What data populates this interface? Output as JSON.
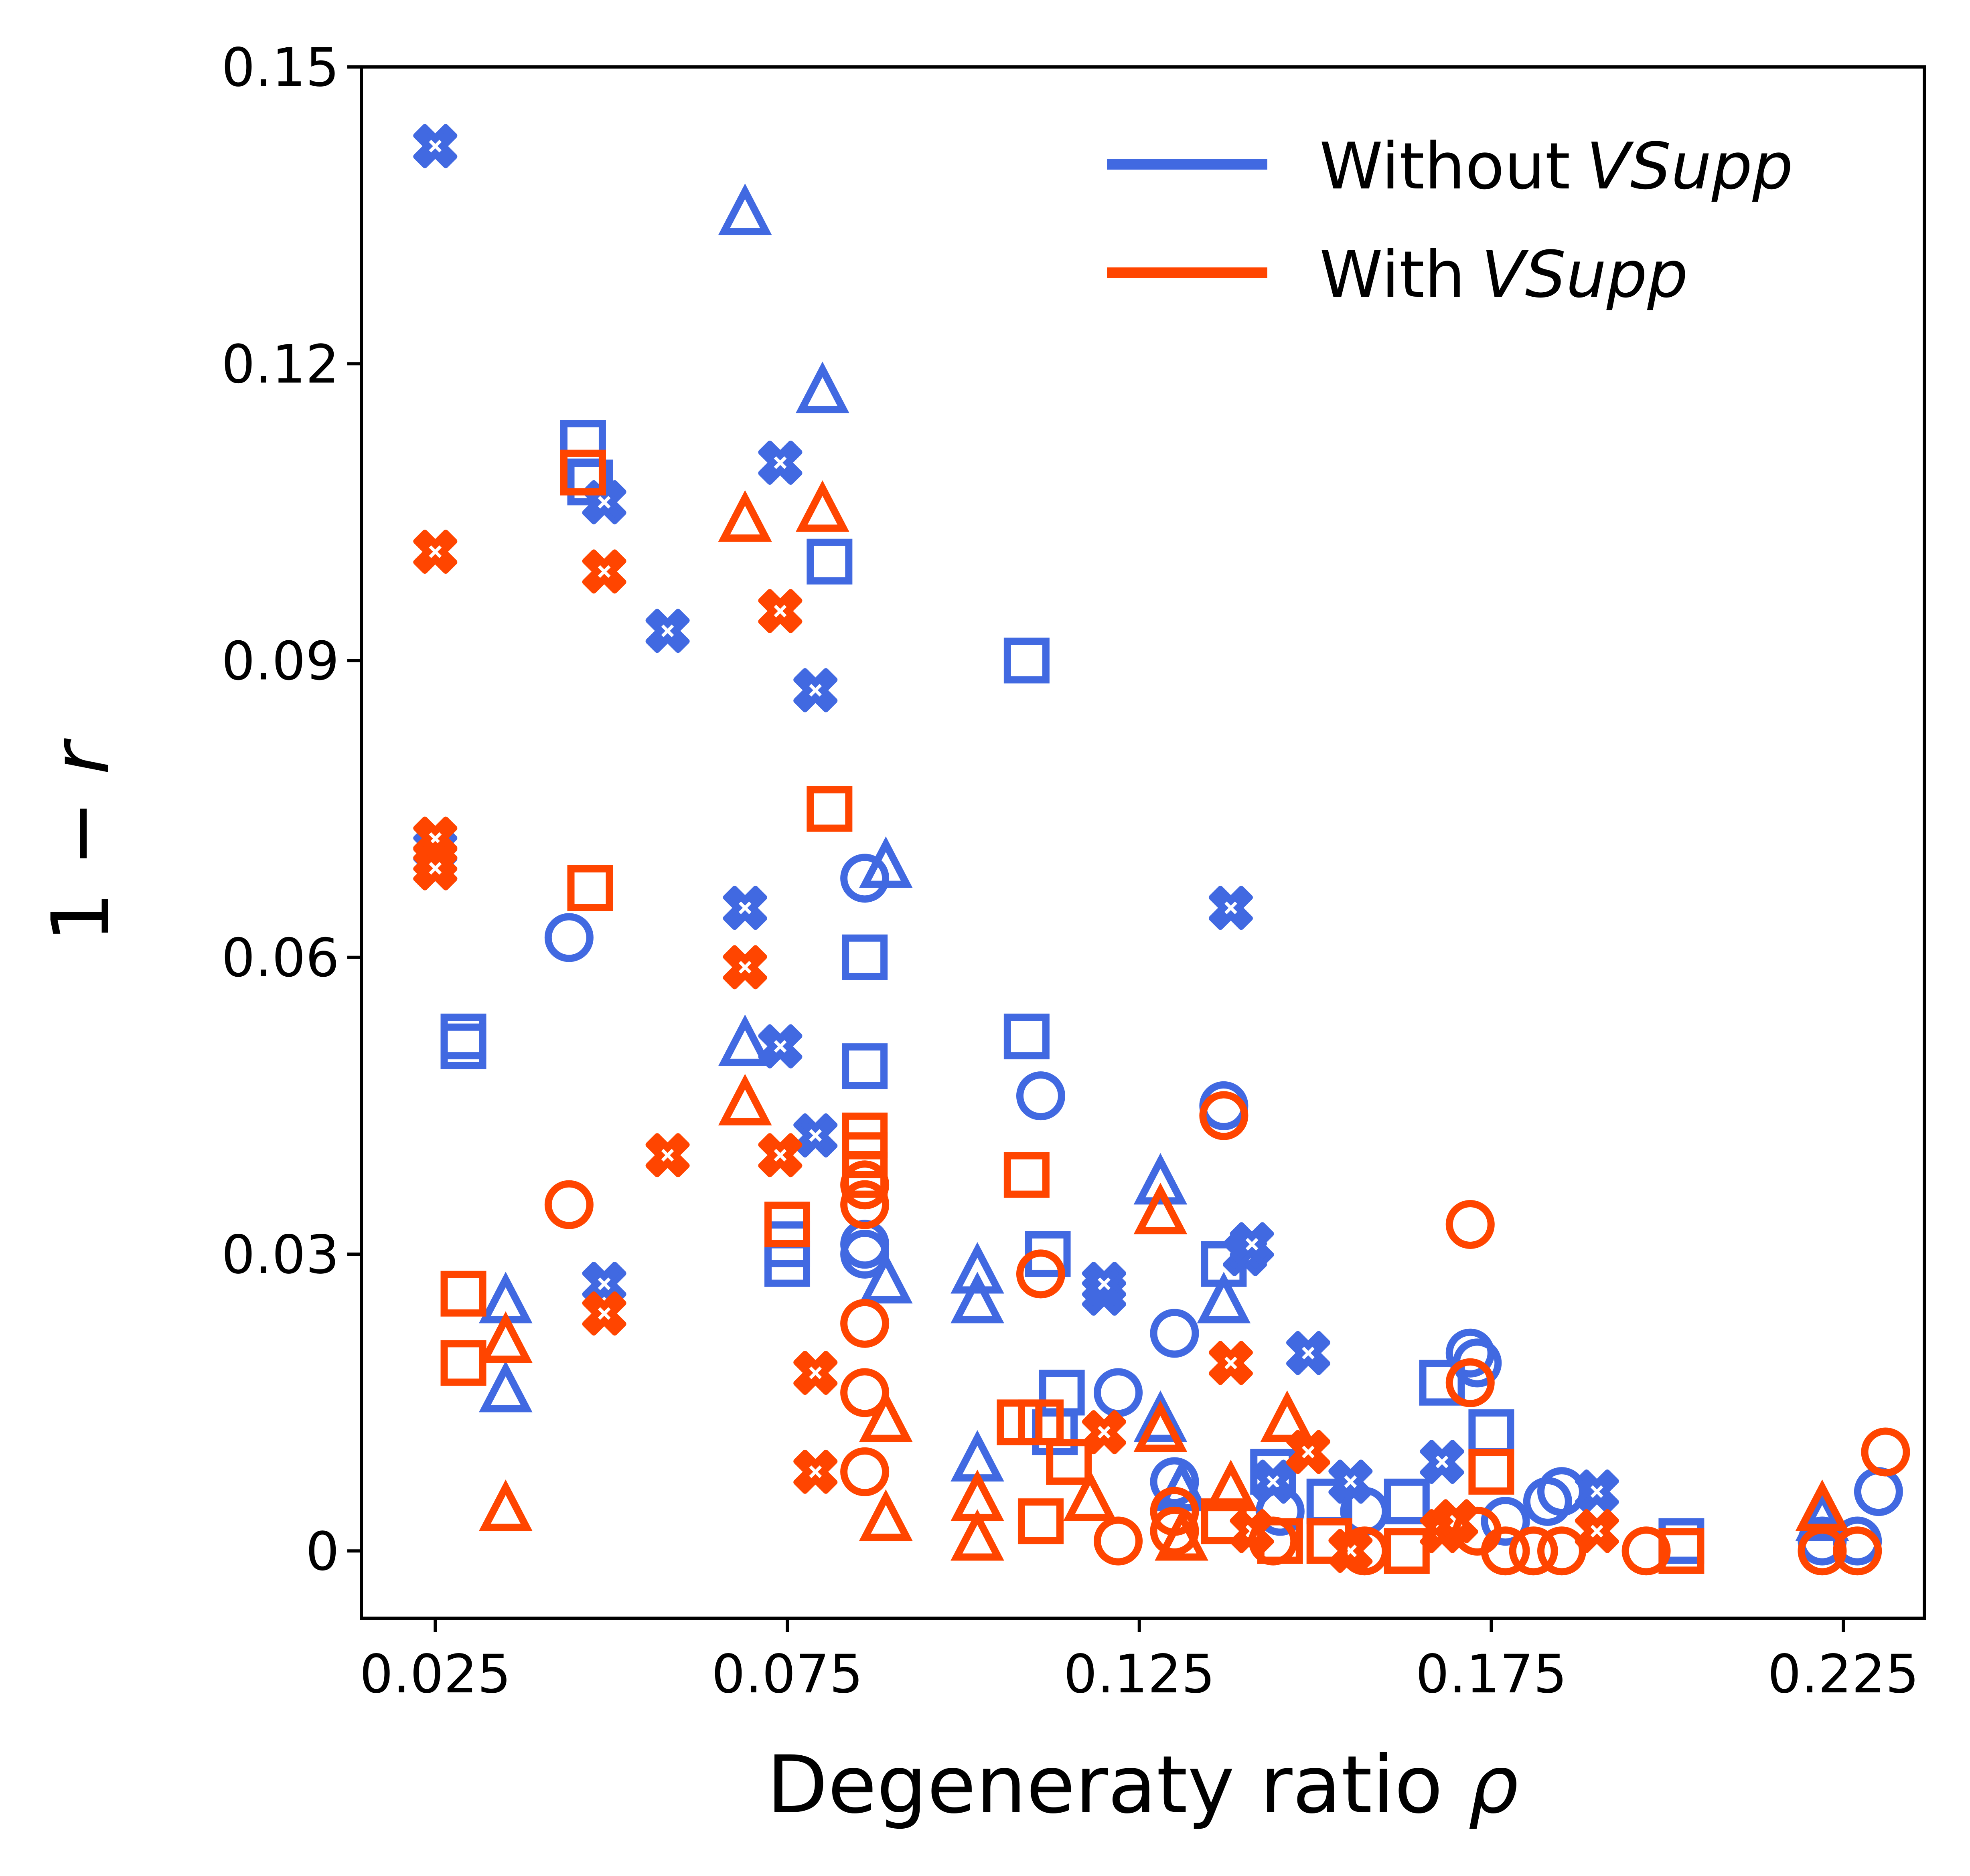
{
  "chart_data": {
    "type": "scatter",
    "xlabel_prefix": "Degeneraty ratio ",
    "xlabel_symbol": "ρ",
    "ylabel_prefix": "1 − ",
    "ylabel_symbol": "r",
    "xlim": [
      0.0145,
      0.2365
    ],
    "ylim": [
      -0.0068,
      0.15
    ],
    "xticks": [
      0.025,
      0.075,
      0.125,
      0.175,
      0.225
    ],
    "xtick_labels": [
      "0.025",
      "0.075",
      "0.125",
      "0.175",
      "0.225"
    ],
    "yticks": [
      0,
      0.03,
      0.06,
      0.09,
      0.12,
      0.15
    ],
    "ytick_labels": [
      "0",
      "0.03",
      "0.06",
      "0.09",
      "0.12",
      "0.15"
    ],
    "legend_position": "top-right",
    "colors": {
      "without": "#4169E1",
      "with": "#FF4500"
    },
    "series": [
      {
        "name": "Without",
        "name_italic": "VSupp",
        "color": "#4169E1",
        "points": [
          {
            "x": 0.025,
            "y": 0.142,
            "m": "x"
          },
          {
            "x": 0.025,
            "y": 0.071,
            "m": "x"
          },
          {
            "x": 0.025,
            "y": 0.069,
            "m": "x"
          },
          {
            "x": 0.029,
            "y": 0.052,
            "m": "s"
          },
          {
            "x": 0.029,
            "y": 0.051,
            "m": "s"
          },
          {
            "x": 0.035,
            "y": 0.025,
            "m": "t"
          },
          {
            "x": 0.035,
            "y": 0.016,
            "m": "t"
          },
          {
            "x": 0.044,
            "y": 0.062,
            "m": "o"
          },
          {
            "x": 0.046,
            "y": 0.112,
            "m": "s"
          },
          {
            "x": 0.047,
            "y": 0.108,
            "m": "s"
          },
          {
            "x": 0.049,
            "y": 0.106,
            "m": "x"
          },
          {
            "x": 0.049,
            "y": 0.027,
            "m": "x"
          },
          {
            "x": 0.058,
            "y": 0.093,
            "m": "x"
          },
          {
            "x": 0.069,
            "y": 0.135,
            "m": "t"
          },
          {
            "x": 0.069,
            "y": 0.065,
            "m": "x"
          },
          {
            "x": 0.069,
            "y": 0.051,
            "m": "t"
          },
          {
            "x": 0.074,
            "y": 0.11,
            "m": "x"
          },
          {
            "x": 0.074,
            "y": 0.051,
            "m": "x"
          },
          {
            "x": 0.075,
            "y": 0.031,
            "m": "s"
          },
          {
            "x": 0.075,
            "y": 0.029,
            "m": "s"
          },
          {
            "x": 0.079,
            "y": 0.087,
            "m": "x"
          },
          {
            "x": 0.079,
            "y": 0.042,
            "m": "x"
          },
          {
            "x": 0.08,
            "y": 0.117,
            "m": "t"
          },
          {
            "x": 0.081,
            "y": 0.1,
            "m": "s"
          },
          {
            "x": 0.086,
            "y": 0.068,
            "m": "o"
          },
          {
            "x": 0.086,
            "y": 0.06,
            "m": "s"
          },
          {
            "x": 0.086,
            "y": 0.049,
            "m": "s"
          },
          {
            "x": 0.086,
            "y": 0.031,
            "m": "o"
          },
          {
            "x": 0.086,
            "y": 0.03,
            "m": "o"
          },
          {
            "x": 0.089,
            "y": 0.069,
            "m": "t"
          },
          {
            "x": 0.089,
            "y": 0.027,
            "m": "t"
          },
          {
            "x": 0.102,
            "y": 0.028,
            "m": "t"
          },
          {
            "x": 0.102,
            "y": 0.025,
            "m": "t"
          },
          {
            "x": 0.102,
            "y": 0.009,
            "m": "t"
          },
          {
            "x": 0.109,
            "y": 0.09,
            "m": "s"
          },
          {
            "x": 0.109,
            "y": 0.052,
            "m": "s"
          },
          {
            "x": 0.111,
            "y": 0.046,
            "m": "o"
          },
          {
            "x": 0.112,
            "y": 0.03,
            "m": "s"
          },
          {
            "x": 0.114,
            "y": 0.016,
            "m": "s"
          },
          {
            "x": 0.113,
            "y": 0.012,
            "m": "s"
          },
          {
            "x": 0.12,
            "y": 0.026,
            "m": "x"
          },
          {
            "x": 0.12,
            "y": 0.027,
            "m": "x"
          },
          {
            "x": 0.122,
            "y": 0.016,
            "m": "o"
          },
          {
            "x": 0.128,
            "y": 0.037,
            "m": "t"
          },
          {
            "x": 0.128,
            "y": 0.013,
            "m": "t"
          },
          {
            "x": 0.13,
            "y": 0.022,
            "m": "o"
          },
          {
            "x": 0.13,
            "y": 0.007,
            "m": "o"
          },
          {
            "x": 0.131,
            "y": 0.006,
            "m": "t"
          },
          {
            "x": 0.137,
            "y": 0.045,
            "m": "o"
          },
          {
            "x": 0.137,
            "y": 0.029,
            "m": "s"
          },
          {
            "x": 0.137,
            "y": 0.025,
            "m": "t"
          },
          {
            "x": 0.138,
            "y": 0.065,
            "m": "x"
          },
          {
            "x": 0.14,
            "y": 0.03,
            "m": "x"
          },
          {
            "x": 0.141,
            "y": 0.031,
            "m": "x"
          },
          {
            "x": 0.144,
            "y": 0.008,
            "m": "s"
          },
          {
            "x": 0.144,
            "y": 0.007,
            "m": "x"
          },
          {
            "x": 0.145,
            "y": 0.004,
            "m": "o"
          },
          {
            "x": 0.149,
            "y": 0.02,
            "m": "x"
          },
          {
            "x": 0.152,
            "y": 0.005,
            "m": "s"
          },
          {
            "x": 0.155,
            "y": 0.007,
            "m": "x"
          },
          {
            "x": 0.157,
            "y": 0.004,
            "m": "o"
          },
          {
            "x": 0.163,
            "y": 0.005,
            "m": "s"
          },
          {
            "x": 0.168,
            "y": 0.009,
            "m": "x"
          },
          {
            "x": 0.168,
            "y": 0.017,
            "m": "s"
          },
          {
            "x": 0.172,
            "y": 0.02,
            "m": "o"
          },
          {
            "x": 0.173,
            "y": 0.019,
            "m": "o"
          },
          {
            "x": 0.175,
            "y": 0.012,
            "m": "s"
          },
          {
            "x": 0.177,
            "y": 0.003,
            "m": "o"
          },
          {
            "x": 0.183,
            "y": 0.005,
            "m": "o"
          },
          {
            "x": 0.185,
            "y": 0.006,
            "m": "o"
          },
          {
            "x": 0.19,
            "y": 0.006,
            "m": "x"
          },
          {
            "x": 0.202,
            "y": 0.001,
            "m": "s"
          },
          {
            "x": 0.222,
            "y": 0.003,
            "m": "t"
          },
          {
            "x": 0.222,
            "y": 0.001,
            "m": "o"
          },
          {
            "x": 0.227,
            "y": 0.001,
            "m": "o"
          },
          {
            "x": 0.23,
            "y": 0.006,
            "m": "o"
          }
        ]
      },
      {
        "name": "With",
        "name_italic": "VSupp",
        "color": "#FF4500",
        "points": [
          {
            "x": 0.025,
            "y": 0.101,
            "m": "x"
          },
          {
            "x": 0.025,
            "y": 0.072,
            "m": "x"
          },
          {
            "x": 0.025,
            "y": 0.07,
            "m": "x"
          },
          {
            "x": 0.025,
            "y": 0.069,
            "m": "x"
          },
          {
            "x": 0.029,
            "y": 0.026,
            "m": "s"
          },
          {
            "x": 0.029,
            "y": 0.019,
            "m": "s"
          },
          {
            "x": 0.035,
            "y": 0.021,
            "m": "t"
          },
          {
            "x": 0.035,
            "y": 0.004,
            "m": "t"
          },
          {
            "x": 0.044,
            "y": 0.035,
            "m": "o"
          },
          {
            "x": 0.046,
            "y": 0.109,
            "m": "s"
          },
          {
            "x": 0.047,
            "y": 0.067,
            "m": "s"
          },
          {
            "x": 0.049,
            "y": 0.099,
            "m": "x"
          },
          {
            "x": 0.049,
            "y": 0.024,
            "m": "x"
          },
          {
            "x": 0.058,
            "y": 0.04,
            "m": "x"
          },
          {
            "x": 0.069,
            "y": 0.104,
            "m": "t"
          },
          {
            "x": 0.069,
            "y": 0.059,
            "m": "x"
          },
          {
            "x": 0.069,
            "y": 0.045,
            "m": "t"
          },
          {
            "x": 0.074,
            "y": 0.095,
            "m": "x"
          },
          {
            "x": 0.074,
            "y": 0.04,
            "m": "x"
          },
          {
            "x": 0.075,
            "y": 0.033,
            "m": "s"
          },
          {
            "x": 0.079,
            "y": 0.018,
            "m": "x"
          },
          {
            "x": 0.079,
            "y": 0.008,
            "m": "x"
          },
          {
            "x": 0.08,
            "y": 0.105,
            "m": "t"
          },
          {
            "x": 0.081,
            "y": 0.075,
            "m": "s"
          },
          {
            "x": 0.086,
            "y": 0.042,
            "m": "s"
          },
          {
            "x": 0.086,
            "y": 0.04,
            "m": "s"
          },
          {
            "x": 0.086,
            "y": 0.038,
            "m": "s"
          },
          {
            "x": 0.086,
            "y": 0.037,
            "m": "o"
          },
          {
            "x": 0.086,
            "y": 0.035,
            "m": "o"
          },
          {
            "x": 0.086,
            "y": 0.023,
            "m": "o"
          },
          {
            "x": 0.086,
            "y": 0.016,
            "m": "o"
          },
          {
            "x": 0.086,
            "y": 0.008,
            "m": "o"
          },
          {
            "x": 0.089,
            "y": 0.013,
            "m": "t"
          },
          {
            "x": 0.089,
            "y": 0.003,
            "m": "t"
          },
          {
            "x": 0.102,
            "y": 0.005,
            "m": "t"
          },
          {
            "x": 0.102,
            "y": 0.001,
            "m": "t"
          },
          {
            "x": 0.109,
            "y": 0.038,
            "m": "s"
          },
          {
            "x": 0.111,
            "y": 0.028,
            "m": "o"
          },
          {
            "x": 0.108,
            "y": 0.013,
            "m": "s"
          },
          {
            "x": 0.111,
            "y": 0.013,
            "m": "s"
          },
          {
            "x": 0.111,
            "y": 0.003,
            "m": "s"
          },
          {
            "x": 0.115,
            "y": 0.009,
            "m": "s"
          },
          {
            "x": 0.118,
            "y": 0.005,
            "m": "t"
          },
          {
            "x": 0.12,
            "y": 0.012,
            "m": "x"
          },
          {
            "x": 0.122,
            "y": 0.001,
            "m": "o"
          },
          {
            "x": 0.128,
            "y": 0.034,
            "m": "t"
          },
          {
            "x": 0.128,
            "y": 0.012,
            "m": "t"
          },
          {
            "x": 0.13,
            "y": 0.004,
            "m": "o"
          },
          {
            "x": 0.13,
            "y": 0.002,
            "m": "o"
          },
          {
            "x": 0.131,
            "y": 0.001,
            "m": "t"
          },
          {
            "x": 0.137,
            "y": 0.044,
            "m": "o"
          },
          {
            "x": 0.137,
            "y": 0.003,
            "m": "s"
          },
          {
            "x": 0.138,
            "y": 0.019,
            "m": "x"
          },
          {
            "x": 0.138,
            "y": 0.006,
            "m": "t"
          },
          {
            "x": 0.141,
            "y": 0.002,
            "m": "x"
          },
          {
            "x": 0.144,
            "y": 0.001,
            "m": "o"
          },
          {
            "x": 0.145,
            "y": 0.001,
            "m": "s"
          },
          {
            "x": 0.146,
            "y": 0.013,
            "m": "t"
          },
          {
            "x": 0.149,
            "y": 0.01,
            "m": "x"
          },
          {
            "x": 0.152,
            "y": 0.001,
            "m": "s"
          },
          {
            "x": 0.155,
            "y": 0.0,
            "m": "x"
          },
          {
            "x": 0.157,
            "y": 0.0,
            "m": "o"
          },
          {
            "x": 0.163,
            "y": 0.0,
            "m": "s"
          },
          {
            "x": 0.168,
            "y": 0.002,
            "m": "x"
          },
          {
            "x": 0.17,
            "y": 0.003,
            "m": "x"
          },
          {
            "x": 0.172,
            "y": 0.033,
            "m": "o"
          },
          {
            "x": 0.172,
            "y": 0.017,
            "m": "o"
          },
          {
            "x": 0.173,
            "y": 0.002,
            "m": "o"
          },
          {
            "x": 0.175,
            "y": 0.008,
            "m": "s"
          },
          {
            "x": 0.177,
            "y": 0.0,
            "m": "o"
          },
          {
            "x": 0.181,
            "y": 0.0,
            "m": "o"
          },
          {
            "x": 0.185,
            "y": 0.0,
            "m": "o"
          },
          {
            "x": 0.19,
            "y": 0.002,
            "m": "x"
          },
          {
            "x": 0.197,
            "y": 0.0,
            "m": "o"
          },
          {
            "x": 0.202,
            "y": 0.0,
            "m": "s"
          },
          {
            "x": 0.222,
            "y": 0.004,
            "m": "t"
          },
          {
            "x": 0.222,
            "y": 0.0,
            "m": "o"
          },
          {
            "x": 0.227,
            "y": 0.0,
            "m": "o"
          },
          {
            "x": 0.231,
            "y": 0.01,
            "m": "o"
          }
        ]
      }
    ]
  }
}
